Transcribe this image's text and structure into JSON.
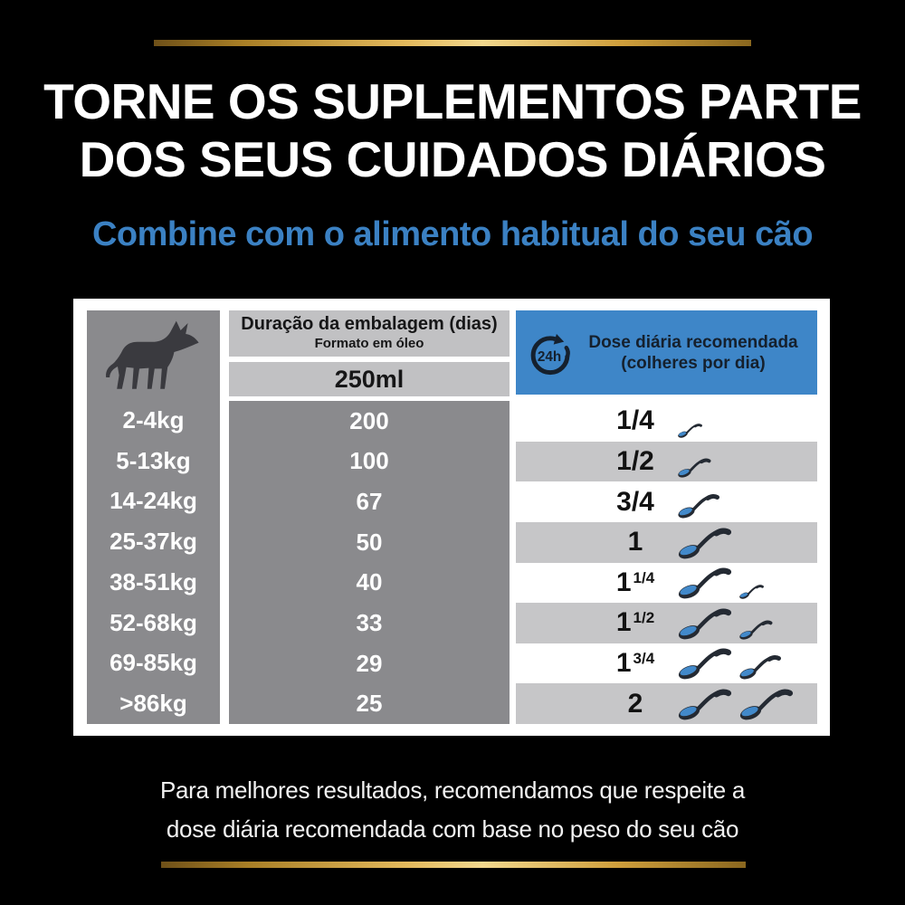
{
  "header": {
    "title_line1": "TORNE OS SUPLEMENTOS PARTE",
    "title_line2": "DOS SEUS CUIDADOS DIÁRIOS",
    "subtitle": "Combine com o alimento habitual do seu cão"
  },
  "table": {
    "duration_header": "Duração da embalagem (dias)",
    "duration_subheader": "Formato em óleo",
    "volume": "250ml",
    "dose_header_line1": "Dose diária recomendada",
    "dose_header_line2": "(colheres por dia)",
    "clock_icon_label": "24h",
    "rows": [
      {
        "weight": "2-4kg",
        "days": "200",
        "dose_whole": "1/4",
        "dose_sup": "",
        "spoons": [
          0.25
        ]
      },
      {
        "weight": "5-13kg",
        "days": "100",
        "dose_whole": "1/2",
        "dose_sup": "",
        "spoons": [
          0.5
        ]
      },
      {
        "weight": "14-24kg",
        "days": "67",
        "dose_whole": "3/4",
        "dose_sup": "",
        "spoons": [
          0.75
        ]
      },
      {
        "weight": "25-37kg",
        "days": "50",
        "dose_whole": "1",
        "dose_sup": "",
        "spoons": [
          1
        ]
      },
      {
        "weight": "38-51kg",
        "days": "40",
        "dose_whole": "1",
        "dose_sup": "1/4",
        "spoons": [
          1,
          0.25
        ]
      },
      {
        "weight": "52-68kg",
        "days": "33",
        "dose_whole": "1",
        "dose_sup": "1/2",
        "spoons": [
          1,
          0.5
        ]
      },
      {
        "weight": "69-85kg",
        "days": "29",
        "dose_whole": "1",
        "dose_sup": "3/4",
        "spoons": [
          1,
          0.75
        ]
      },
      {
        "weight": ">86kg",
        "days": "25",
        "dose_whole": "2",
        "dose_sup": "",
        "spoons": [
          1,
          1
        ]
      }
    ]
  },
  "footer": {
    "line1": "Para melhores resultados, recomendamos que respeite a",
    "line2": "dose diária recomendada com base no peso do seu cão"
  },
  "icons": {
    "weight_header": "dog-icon",
    "dose_header": "24h-clock-icon",
    "dose_value": "spoon-icon"
  },
  "colors": {
    "background": "#000000",
    "gold_mid": "#c9982f",
    "subtitle_blue": "#3b81c3",
    "panel_bg": "#ffffff",
    "gray_dark": "#8a8a8d",
    "gray_light": "#c1c1c3",
    "stripe_gray": "#c6c6c8",
    "blue_header": "#3e86c8",
    "header_text_dark": "#15202d",
    "dose_text": "#121212",
    "spoon_dark": "#242a33",
    "spoon_blue": "#4289ca",
    "dog_silhouette": "#3a3a3f",
    "footer_text": "#f2f2f2"
  }
}
